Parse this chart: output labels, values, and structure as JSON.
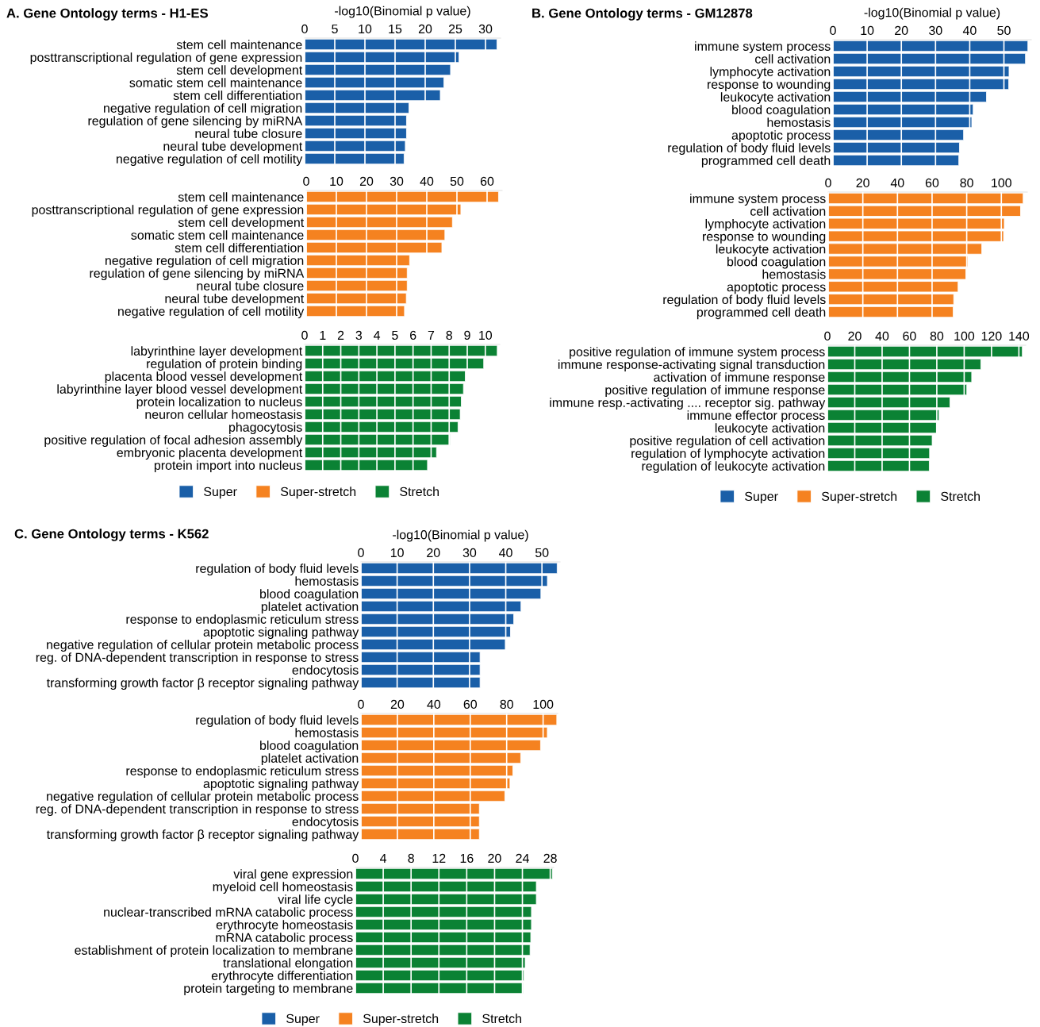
{
  "chart_data": [
    {
      "type": "bar",
      "orientation": "horizontal",
      "title": "A. Gene Ontology terms - H1-ES",
      "xlabel": "-log10(Binomial p value)",
      "categories": [
        "stem cell maintenance",
        "posttranscriptional regulation of gene expression",
        "stem cell development",
        "somatic stem cell maintenance",
        "stem cell differentiation",
        "negative regulation of cell migration",
        "regulation of gene silencing by miRNA",
        "neural tube closure",
        "neural tube development",
        "negative regulation of cell motility"
      ],
      "series": [
        {
          "name": "Super",
          "color": "#1a5fa8",
          "values": [
            31.9,
            25.6,
            24.2,
            23.1,
            22.5,
            17.3,
            16.9,
            16.9,
            16.7,
            16.5
          ]
        }
      ],
      "xlim": [
        0,
        32.5
      ],
      "xticks": [
        0,
        5,
        10,
        15,
        20,
        25,
        30
      ],
      "grid": "x"
    },
    {
      "type": "bar",
      "orientation": "horizontal",
      "categories": [
        "stem cell maintenance",
        "posttranscriptional regulation of gene expression",
        "stem cell development",
        "somatic stem cell maintenance",
        "stem cell differentiation",
        "negative regulation of cell migration",
        "regulation of gene silencing by miRNA",
        "neural tube closure",
        "neural tube development",
        "negative regulation of cell motility"
      ],
      "series": [
        {
          "name": "Super-stretch",
          "color": "#f58220",
          "values": [
            63.8,
            51.3,
            48.5,
            46.0,
            45.0,
            34.3,
            33.5,
            33.5,
            33.2,
            32.6
          ]
        }
      ],
      "xlim": [
        0,
        65
      ],
      "xticks": [
        0,
        10,
        20,
        30,
        40,
        50,
        60
      ],
      "grid": "x"
    },
    {
      "type": "bar",
      "orientation": "horizontal",
      "categories": [
        "labyrinthine layer development",
        "regulation of protein binding",
        "placenta blood vessel development",
        "labyrinthine layer blood vessel development",
        "protein localization to nucleus",
        "neuron cellular homeostasis",
        "phagocytosis",
        "positive regulation of focal adhesion assembly",
        "embryonic placenta development",
        "protein import into nucleus"
      ],
      "series": [
        {
          "name": "Stretch",
          "color": "#0b8234",
          "values": [
            10.66,
            9.91,
            8.89,
            8.79,
            8.67,
            8.61,
            8.49,
            8.04,
            7.3,
            6.8
          ]
        }
      ],
      "xlim": [
        0,
        10.8
      ],
      "xticks": [
        0,
        1,
        2,
        3,
        4,
        5,
        6,
        7,
        8,
        9,
        10
      ],
      "grid": "x",
      "legend": "bottom"
    },
    {
      "type": "bar",
      "orientation": "horizontal",
      "title": "B. Gene Ontology terms - GM12878",
      "xlabel": "-log10(Binomial p value)",
      "categories": [
        "immune system process",
        "cell activation",
        "lymphocyte activation",
        "response to wounding",
        "leukocyte activation",
        "blood coagulation",
        "hemostasis",
        "apoptotic process",
        "regulation of body fluid levels",
        "programmed cell death"
      ],
      "series": [
        {
          "name": "Super",
          "color": "#1a5fa8",
          "values": [
            57.0,
            56.3,
            51.5,
            51.4,
            44.9,
            41.0,
            40.6,
            38.2,
            37.0,
            36.8
          ]
        }
      ],
      "xlim": [
        0,
        58
      ],
      "xticks": [
        0,
        10,
        20,
        30,
        40,
        50
      ],
      "grid": "x"
    },
    {
      "type": "bar",
      "orientation": "horizontal",
      "categories": [
        "immune system process",
        "cell activation",
        "lymphocyte activation",
        "response to wounding",
        "leukocyte activation",
        "blood coagulation",
        "hemostasis",
        "apoptotic process",
        "regulation of body fluid levels",
        "programmed cell death"
      ],
      "series": [
        {
          "name": "Super-stretch",
          "color": "#f58220",
          "values": [
            112.6,
            111.1,
            101.7,
            101.3,
            88.7,
            80.6,
            79.5,
            75.0,
            72.5,
            72.2
          ]
        }
      ],
      "xlim": [
        0,
        115
      ],
      "xticks": [
        0,
        20,
        40,
        60,
        80,
        100
      ],
      "grid": "x"
    },
    {
      "type": "bar",
      "orientation": "horizontal",
      "categories": [
        "positive regulation of immune system process",
        "immune response-activating signal transduction",
        "activation of immune response",
        "positive regulation of immune response",
        "immune resp.-activating .... receptor sig. pathway",
        "immune effector process",
        "leukocyte activation",
        "positive regulation of cell activation",
        "regulation of lymphocyte activation",
        "regulation of leukocyte activation"
      ],
      "series": [
        {
          "name": "Stretch",
          "color": "#0b8234",
          "values": [
            142.5,
            112.2,
            105.5,
            101.9,
            89.6,
            81.6,
            79.7,
            76.6,
            74.7,
            74.5
          ]
        }
      ],
      "xlim": [
        0,
        145
      ],
      "xticks": [
        0,
        20,
        40,
        60,
        80,
        100,
        120,
        140
      ],
      "grid": "x",
      "legend": "bottom"
    },
    {
      "type": "bar",
      "orientation": "horizontal",
      "title": "C. Gene Ontology terms - K562",
      "xlabel": "-log10(Binomial p value)",
      "categories": [
        "regulation of body fluid levels",
        "hemostasis",
        "blood coagulation",
        "platelet activation",
        "response to endoplasmic reticulum stress",
        "apoptotic signaling pathway",
        "negative regulation of cellular protein metabolic process",
        "reg. of DNA-dependent transcription in response to stress",
        "endocytosis",
        "transforming growth factor β receptor signaling pathway"
      ],
      "series": [
        {
          "name": "Super",
          "color": "#1a5fa8",
          "values": [
            54.2,
            51.5,
            49.7,
            44.2,
            42.2,
            41.3,
            39.9,
            32.9,
            32.9,
            32.9
          ]
        }
      ],
      "xlim": [
        0,
        55
      ],
      "xticks": [
        0,
        10,
        20,
        30,
        40,
        50
      ],
      "grid": "x"
    },
    {
      "type": "bar",
      "orientation": "horizontal",
      "categories": [
        "regulation of body fluid levels",
        "hemostasis",
        "blood coagulation",
        "platelet activation",
        "response to endoplasmic reticulum stress",
        "apoptotic signaling pathway",
        "negative regulation of cellular protein metabolic process",
        "reg. of DNA-dependent transcription in response to stress",
        "endocytosis",
        "transforming growth factor β receptor signaling pathway"
      ],
      "series": [
        {
          "name": "Super-stretch",
          "color": "#f58220",
          "values": [
            107.5,
            102.3,
            98.6,
            87.7,
            83.4,
            81.8,
            79.0,
            65.0,
            65.0,
            65.0
          ]
        }
      ],
      "xlim": [
        0,
        108
      ],
      "xticks": [
        0,
        20,
        40,
        60,
        80,
        100
      ],
      "grid": "x"
    },
    {
      "type": "bar",
      "orientation": "horizontal",
      "categories": [
        "viral gene expression",
        "myeloid cell homeostasis",
        "viral life cycle",
        "nuclear-transcribed mRNA catabolic process",
        "erythrocyte homeostasis",
        "mRNA catabolic process",
        "establishment of protein localization to membrane",
        "translational elongation",
        "erythrocyte differentiation",
        "protein targeting to membrane"
      ],
      "series": [
        {
          "name": "Stretch",
          "color": "#0b8234",
          "values": [
            28.3,
            26.0,
            26.0,
            25.3,
            25.3,
            25.2,
            25.1,
            24.4,
            24.2,
            24.1
          ]
        }
      ],
      "xlim": [
        0,
        28.5
      ],
      "xticks": [
        0,
        4,
        8,
        12,
        16,
        20,
        24,
        28
      ],
      "grid": "x",
      "legend": "bottom"
    }
  ]
}
